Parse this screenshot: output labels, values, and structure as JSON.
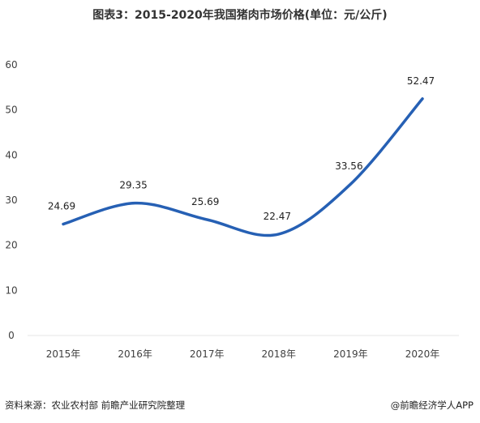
{
  "title": "图表3：2015-2020年我国猪肉市场价格(单位：元/公斤)",
  "chart_data": {
    "type": "line",
    "categories": [
      "2015年",
      "2016年",
      "2017年",
      "2018年",
      "2019年",
      "2020年"
    ],
    "series": [
      {
        "values": [
          24.69,
          29.35,
          25.69,
          22.47,
          33.56,
          52.47
        ]
      }
    ],
    "data_labels": [
      "24.69",
      "29.35",
      "25.69",
      "22.47",
      "33.56",
      "52.47"
    ],
    "ylim": [
      0,
      60
    ],
    "yticks": [
      0,
      10,
      20,
      30,
      40,
      50,
      60
    ],
    "grid": false,
    "line_color": "#2660b4"
  },
  "footer": {
    "source": "资料来源：农业农村部 前瞻产业研究院整理",
    "brand": "@前瞻经济学人APP"
  }
}
